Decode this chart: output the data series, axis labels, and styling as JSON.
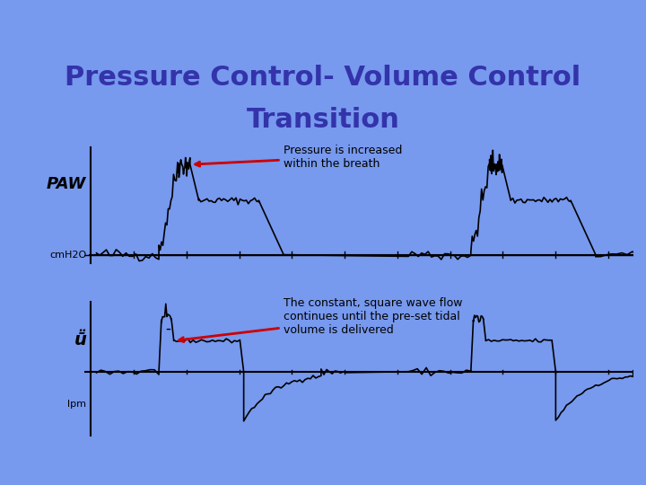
{
  "title_line1": "Pressure Control- Volume Control",
  "title_line2": "Transition",
  "title_color": "#3333aa",
  "header_bg": "#0000ff",
  "body_bg": "#7799ee",
  "plot_bg": "#ffffff",
  "annotation1_text": "Pressure is increased\nwithin the breath",
  "annotation2_text": "The constant, square wave flow\ncontinues until the pre-set tidal\nvolume is delivered",
  "label_paw": "PAW",
  "label_cmh2o": "cmH2O",
  "label_vdot": "ṻ",
  "label_lpm": "lpm",
  "arrow_color": "#cc0000"
}
